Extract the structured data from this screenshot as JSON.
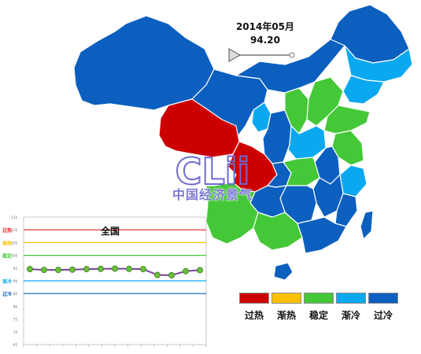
{
  "time_label": {
    "date": "2014年05月",
    "value": "94.20"
  },
  "legend": [
    {
      "label": "过热",
      "color": "#cc0000"
    },
    {
      "label": "渐热",
      "color": "#ffc000"
    },
    {
      "label": "稳定",
      "color": "#44c837"
    },
    {
      "label": "渐冷",
      "color": "#0aa8f0"
    },
    {
      "label": "过冷",
      "color": "#0b5fbf"
    }
  ],
  "watermark": {
    "logo_text": "CLii",
    "caption": "中国经济景气"
  },
  "chart_data": {
    "type": "line",
    "title": "全国",
    "ylim": [
      65,
      115
    ],
    "y_ticks": [
      "65",
      "70",
      "75",
      "80",
      "85",
      "90",
      "95",
      "100",
      "105",
      "110",
      "115"
    ],
    "bands": [
      {
        "label": "过热",
        "y": 110,
        "color": "#e02020"
      },
      {
        "label": "渐热",
        "y": 105,
        "color": "#ffc000"
      },
      {
        "label": "稳定",
        "y": 100,
        "color": "#44c837"
      },
      {
        "label": "渐冷",
        "y": 90,
        "color": "#0aa8f0"
      },
      {
        "label": "过冷",
        "y": 85,
        "color": "#0b5fbf"
      }
    ],
    "series": [
      {
        "values": [
          94.6,
          94.3,
          94.3,
          94.4,
          94.6,
          94.7,
          94.8,
          94.7,
          94.6,
          92.3,
          92.2,
          93.8,
          94.2
        ],
        "line_color": "#7b3fa0",
        "marker_color": "#6abf3a"
      }
    ]
  }
}
